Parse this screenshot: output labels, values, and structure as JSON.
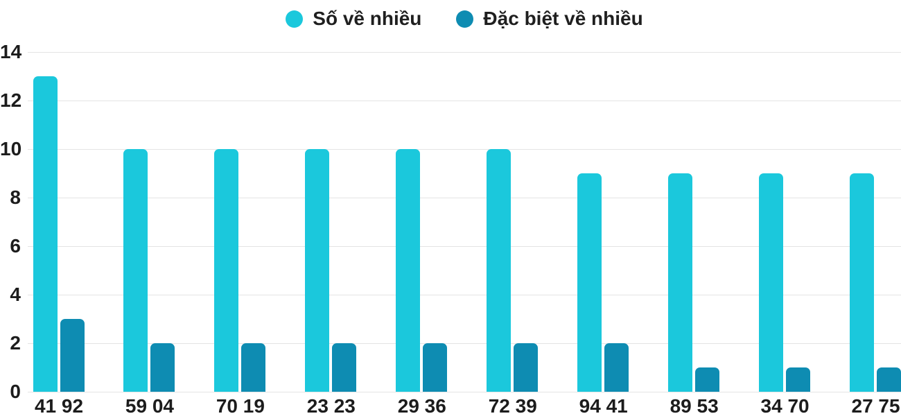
{
  "chart_data": {
    "type": "bar",
    "title": "",
    "xlabel": "",
    "ylabel": "",
    "categories": [
      "41 92",
      "59 04",
      "70 19",
      "23 23",
      "29 36",
      "72 39",
      "94 41",
      "89 53",
      "34 70",
      "27 75"
    ],
    "series": [
      {
        "name": "Số về nhiều",
        "slug": "so-ve-nhieu",
        "color": "#1BC8DC",
        "values": [
          13,
          10,
          10,
          10,
          10,
          10,
          9,
          9,
          9,
          9
        ]
      },
      {
        "name": "Đặc biệt về nhiều",
        "slug": "dac-biet-ve-nhieu",
        "color": "#0E8CB2",
        "values": [
          3,
          2,
          2,
          2,
          2,
          2,
          2,
          1,
          1,
          1
        ]
      }
    ],
    "ylim": [
      0,
      14
    ],
    "yticks": [
      0,
      2,
      4,
      6,
      8,
      10,
      12,
      14
    ],
    "grid": true,
    "legend_position": "top-center"
  },
  "colors": {
    "series1": "#1BC8DC",
    "series2": "#0E8CB2",
    "gridline": "#E4E4E4",
    "text": "#1F1F1F",
    "background": "#FFFFFF"
  }
}
